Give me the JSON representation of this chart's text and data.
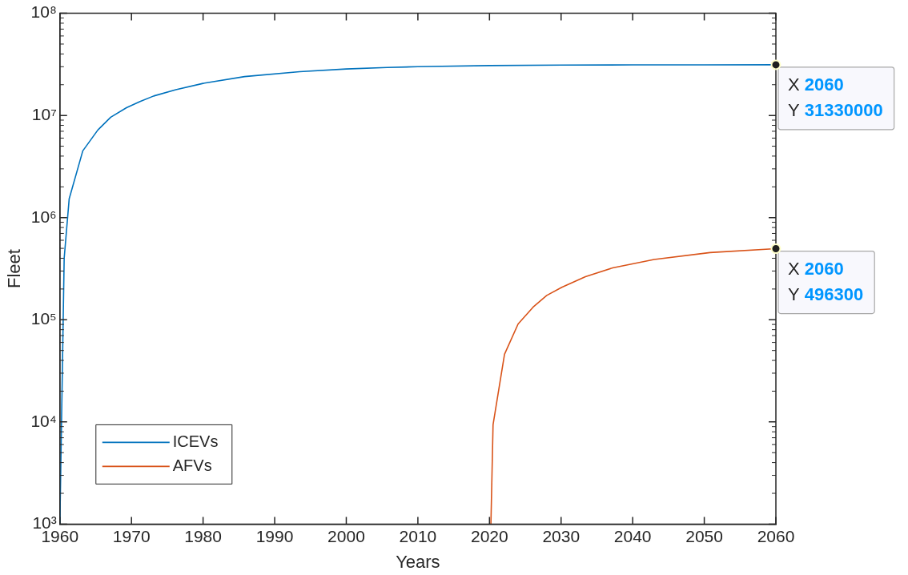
{
  "chart_data": {
    "type": "line",
    "xlabel": "Years",
    "ylabel": "Fleet",
    "log": "y",
    "grid": false,
    "legend": "bottom left",
    "marker": "none",
    "line_style": "solid",
    "xlim": [
      1960,
      2060
    ],
    "xticks": [
      1960,
      1970,
      1980,
      1990,
      2000,
      2010,
      2020,
      2030,
      2040,
      2050,
      2060
    ],
    "ylim": [
      1000,
      100000000
    ],
    "yticks": [
      {
        "value": 1000,
        "label": "10³"
      },
      {
        "value": 10000,
        "label": "10⁴"
      },
      {
        "value": 100000,
        "label": "10⁵"
      },
      {
        "value": 1000000,
        "label": "10⁶"
      },
      {
        "value": 10000000,
        "label": "10⁷"
      },
      {
        "value": 100000000,
        "label": "10⁸"
      }
    ],
    "series": [
      {
        "name": "ICEVs",
        "color": "#0072bd",
        "x": [
          1960,
          1960.6,
          1961.3,
          1963.2,
          1965.3,
          1967.1,
          1969.3,
          1971.2,
          1973.1,
          1976.2,
          1980,
          1985.8,
          1993.5,
          2000,
          2005.7,
          2010,
          2020,
          2030,
          2040,
          2050,
          2060
        ],
        "values": [
          1000,
          400000,
          1530000,
          4500000,
          7200000,
          9600000,
          11900000,
          13700000,
          15500000,
          17900000,
          20600000,
          24000000,
          26800000,
          28500000,
          29500000,
          30000000,
          30800000,
          31100000,
          31250000,
          31300000,
          31330000
        ]
      },
      {
        "name": "AFVs",
        "color": "#d95319",
        "x": [
          2020.2,
          2020.5,
          2022.1,
          2024,
          2026.1,
          2028,
          2030.1,
          2033.4,
          2037.2,
          2043,
          2050.8,
          2060
        ],
        "values": [
          1000,
          9400,
          46000,
          91000,
          133000,
          173000,
          208000,
          264000,
          322000,
          389000,
          455000,
          496300
        ]
      }
    ],
    "annotations": [
      {
        "text": "X 2060\nY 31330000",
        "x": 2060,
        "y": 31330000
      },
      {
        "text": "X 2060\nY 496300",
        "x": 2060,
        "y": 496300
      }
    ]
  }
}
